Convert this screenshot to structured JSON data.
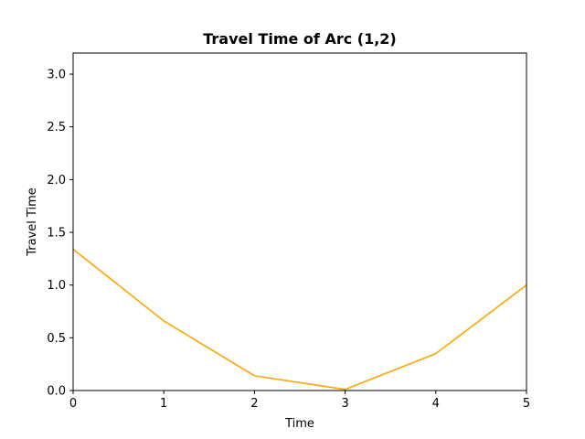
{
  "chart_data": {
    "type": "line",
    "title": "Travel Time of Arc (1,2)",
    "xlabel": "Time",
    "ylabel": "Travel Time",
    "xlim": [
      0,
      5
    ],
    "ylim": [
      0,
      3.2
    ],
    "xticks": [
      "0",
      "1",
      "2",
      "3",
      "4",
      "5"
    ],
    "yticks": [
      "0.0",
      "0.5",
      "1.0",
      "1.5",
      "2.0",
      "2.5",
      "3.0"
    ],
    "grid": false,
    "series": [
      {
        "color": "#ffa500",
        "x": [
          0,
          1,
          2,
          3,
          4,
          5
        ],
        "y": [
          1.34,
          0.66,
          0.14,
          0.01,
          0.35,
          1.0
        ]
      }
    ]
  }
}
